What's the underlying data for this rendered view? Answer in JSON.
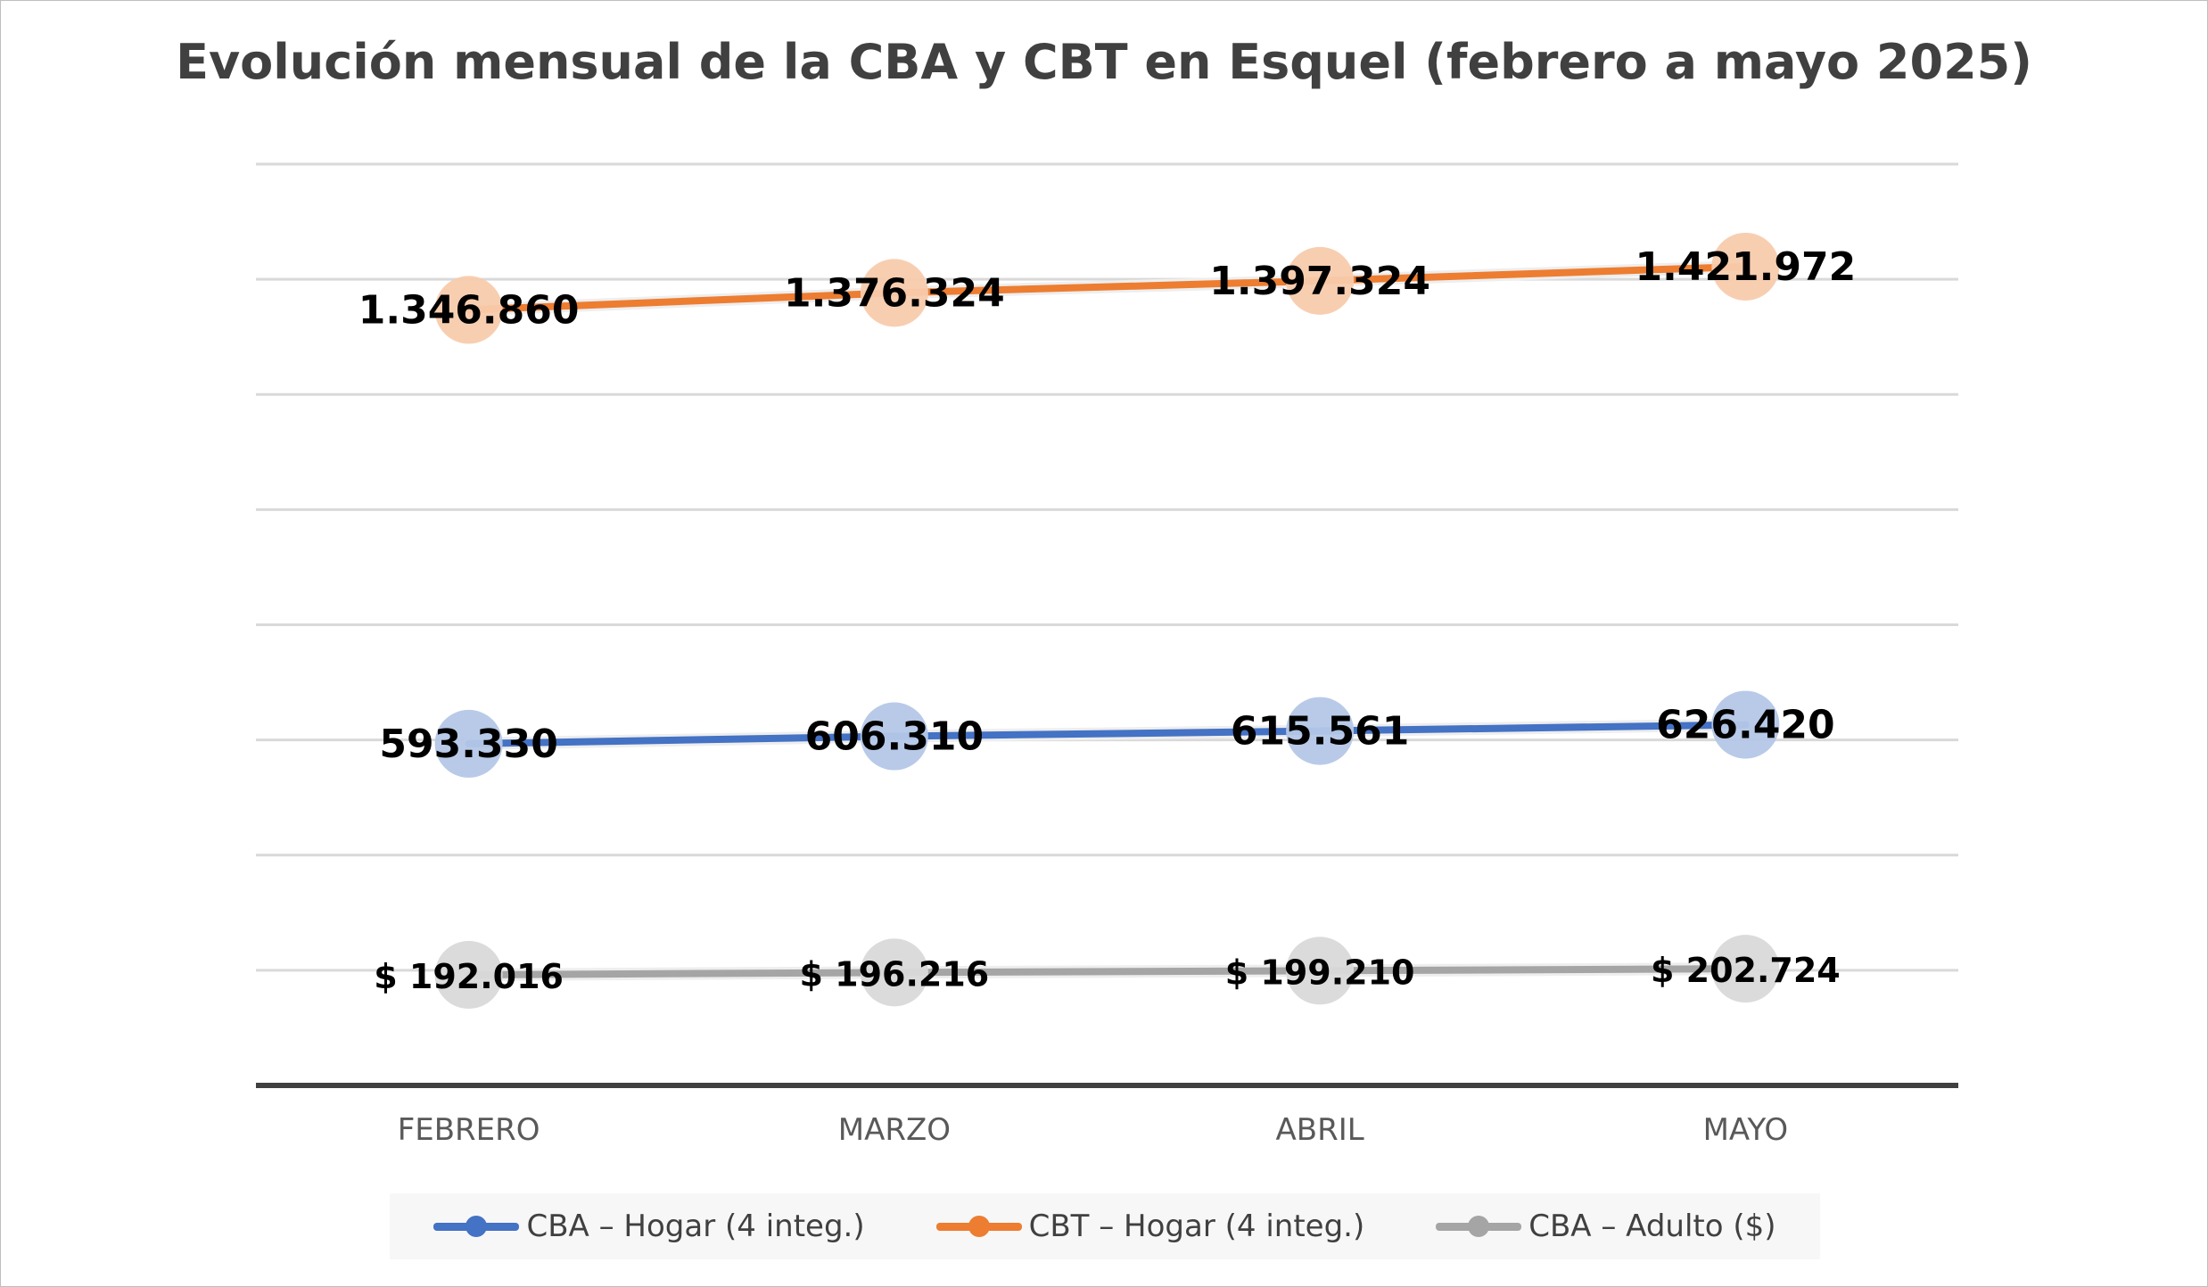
{
  "colors": {
    "cba_hogar": "#4472c4",
    "cbt_hogar": "#ed7d31",
    "cba_adulto": "#a5a5a5",
    "cba_hogar_marker": "#b4c7e7",
    "cbt_hogar_marker": "#f8cbad",
    "cba_adulto_marker": "#d9d9d9",
    "gridline": "#d9d9d9",
    "axis": "#404040"
  },
  "chart_data": {
    "type": "line",
    "title": "Evolución mensual de la CBA y CBT en Esquel (febrero a mayo 2025)",
    "categories": [
      "FEBRERO",
      "MARZO",
      "ABRIL",
      "MAYO"
    ],
    "series": [
      {
        "name": "CBA – Hogar (4 integ.)",
        "values": [
          593330,
          606310,
          615561,
          626420
        ],
        "labels": [
          "593.330",
          "606.310",
          "615.561",
          "626.420"
        ],
        "color": "#4472c4"
      },
      {
        "name": "CBT – Hogar (4 integ.)",
        "values": [
          1346860,
          1376324,
          1397324,
          1421972
        ],
        "labels": [
          "1.346.860",
          "1.376.324",
          "1.397.324",
          "1.421.972"
        ],
        "color": "#ed7d31"
      },
      {
        "name": "CBA – Adulto ($)",
        "values": [
          192016,
          196216,
          199210,
          202724
        ],
        "labels": [
          "$ 192.016",
          "$ 196.216",
          "$ 199.210",
          "$ 202.724"
        ],
        "color": "#a5a5a5"
      }
    ],
    "ylim": [
      0,
      1600000
    ],
    "y_axis_labels_visible": false,
    "grid": true,
    "legend_position": "bottom",
    "xlabel": "",
    "ylabel": ""
  }
}
